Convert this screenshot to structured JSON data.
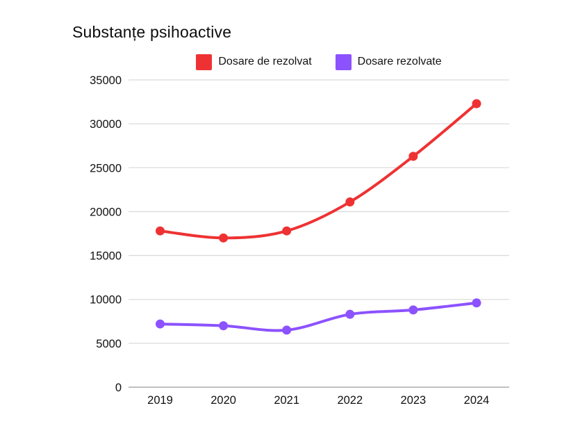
{
  "page": {
    "background": "#ffffff"
  },
  "header": {
    "title": "Substanțe psihoactive"
  },
  "legend": {
    "items": [
      {
        "label": "Dosare de rezolvat",
        "color": "#EE3233"
      },
      {
        "label": "Dosare rezolvate",
        "color": "#8C52FF"
      }
    ]
  },
  "chart_data": {
    "type": "line",
    "title": "Substanțe psihoactive",
    "categories": [
      "2019",
      "2020",
      "2021",
      "2022",
      "2023",
      "2024"
    ],
    "series": [
      {
        "name": "Dosare de rezolvat",
        "color": "#EE3233",
        "values": [
          17800,
          17000,
          17800,
          21100,
          26300,
          32300
        ]
      },
      {
        "name": "Dosare rezolvate",
        "color": "#8C52FF",
        "values": [
          7200,
          7000,
          6500,
          8300,
          8800,
          9600
        ]
      }
    ],
    "xlabel": "",
    "ylabel": "",
    "ylim": [
      0,
      35000
    ],
    "y_ticks": [
      0,
      5000,
      10000,
      15000,
      20000,
      25000,
      30000,
      35000
    ],
    "grid": true,
    "legend_position": "top",
    "line_style": "smooth",
    "grid_color": "#dbdbdb",
    "axis_line_color": "#9c9c9c",
    "text_color": "#111111"
  }
}
